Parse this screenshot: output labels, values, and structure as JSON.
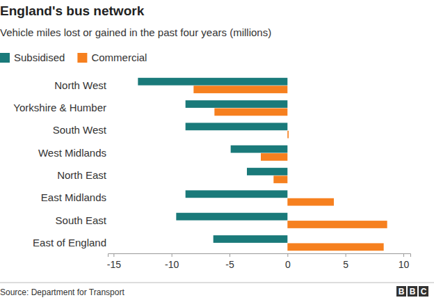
{
  "chart_data": {
    "type": "bar",
    "orientation": "horizontal",
    "title": "England's bus network",
    "subtitle": "Vehicle miles lost or gained in the past four years (millions)",
    "source": "Source: Department for Transport",
    "logo": "BBC",
    "categories": [
      "North West",
      "Yorkshire & Humber",
      "South West",
      "West Midlands",
      "North East",
      "East Midlands",
      "South East",
      "East of England"
    ],
    "series": [
      {
        "name": "Subsidised",
        "color": "#1a7a7a",
        "values": [
          -12.9,
          -8.8,
          -8.8,
          -4.9,
          -3.5,
          -8.8,
          -9.6,
          -6.4
        ]
      },
      {
        "name": "Commercial",
        "color": "#f6801f",
        "values": [
          -8.1,
          -6.3,
          0.1,
          -2.3,
          -1.2,
          4.0,
          8.6,
          8.3
        ]
      }
    ],
    "xlim": [
      -15.5,
      10.6
    ],
    "xticks": [
      -15,
      -10,
      -5,
      0,
      5,
      10
    ],
    "grid": false,
    "legend": "top-left"
  }
}
